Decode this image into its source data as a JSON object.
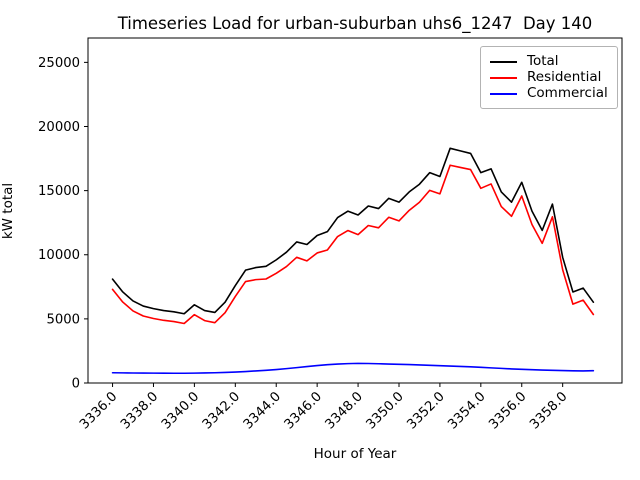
{
  "figure": {
    "background": "#ffffff"
  },
  "legend": {
    "position": "upper right",
    "entries": [
      {
        "label": "Total",
        "color": "#000000"
      },
      {
        "label": "Residential",
        "color": "#ff0000"
      },
      {
        "label": "Commercial",
        "color": "#0000ff"
      }
    ]
  },
  "chart_data": {
    "type": "line",
    "title": "Timeseries Load for urban-suburban uhs6_1247  Day 140",
    "xlabel": "Hour of Year",
    "ylabel": "kW total",
    "xlim": [
      3334.8,
      3360.9
    ],
    "ylim": [
      0,
      26900
    ],
    "grid": false,
    "legend_position": "upper right",
    "xticks": [
      3336,
      3338,
      3340,
      3342,
      3344,
      3346,
      3348,
      3350,
      3352,
      3354,
      3356,
      3358
    ],
    "xtick_labels": [
      "3336.0",
      "3338.0",
      "3340.0",
      "3342.0",
      "3344.0",
      "3346.0",
      "3348.0",
      "3350.0",
      "3352.0",
      "3354.0",
      "3356.0",
      "3358.0"
    ],
    "yticks": [
      0,
      5000,
      10000,
      15000,
      20000,
      25000
    ],
    "ytick_labels": [
      "0",
      "5000",
      "10000",
      "15000",
      "20000",
      "25000"
    ],
    "x": [
      3336.0,
      3336.5,
      3337.0,
      3337.5,
      3338.0,
      3338.5,
      3339.0,
      3339.5,
      3340.0,
      3340.5,
      3341.0,
      3341.5,
      3342.0,
      3342.5,
      3343.0,
      3343.5,
      3344.0,
      3344.5,
      3345.0,
      3345.5,
      3346.0,
      3346.5,
      3347.0,
      3347.5,
      3348.0,
      3348.5,
      3349.0,
      3349.5,
      3350.0,
      3350.5,
      3351.0,
      3351.5,
      3352.0,
      3352.5,
      3353.0,
      3353.5,
      3354.0,
      3354.5,
      3355.0,
      3355.5,
      3356.0,
      3356.5,
      3357.0,
      3357.5,
      3358.0,
      3358.5,
      3359.0,
      3359.5
    ],
    "series": [
      {
        "name": "Total",
        "color": "#000000",
        "values": [
          8100,
          7100,
          6400,
          6000,
          5800,
          5650,
          5550,
          5400,
          6100,
          5650,
          5500,
          6300,
          7600,
          8800,
          9000,
          9100,
          9600,
          10200,
          11000,
          10800,
          11500,
          11800,
          12900,
          13400,
          13100,
          13800,
          13600,
          14400,
          14100,
          14900,
          15500,
          16400,
          16100,
          18300,
          18100,
          17900,
          16400,
          16700,
          14900,
          14100,
          15650,
          13400,
          11900,
          13950,
          9800,
          7100,
          7400,
          6300
        ]
      },
      {
        "name": "Residential",
        "color": "#ff0000",
        "values": [
          7300,
          6310,
          5620,
          5225,
          5030,
          4885,
          4790,
          4640,
          5330,
          4865,
          4700,
          5480,
          6750,
          7910,
          8060,
          8110,
          8550,
          9080,
          9800,
          9520,
          10140,
          10370,
          11420,
          11890,
          11570,
          12280,
          12100,
          12920,
          12640,
          13460,
          14090,
          15020,
          14750,
          16980,
          16810,
          16640,
          15180,
          15520,
          13760,
          13000,
          14580,
          12360,
          10890,
          12960,
          8830,
          6150,
          6460,
          5340
        ]
      },
      {
        "name": "Commercial",
        "color": "#0000ff",
        "values": [
          800,
          790,
          780,
          775,
          770,
          765,
          760,
          760,
          770,
          785,
          800,
          820,
          850,
          890,
          940,
          990,
          1050,
          1120,
          1200,
          1280,
          1360,
          1430,
          1480,
          1510,
          1530,
          1520,
          1500,
          1480,
          1460,
          1440,
          1410,
          1380,
          1350,
          1320,
          1290,
          1260,
          1220,
          1180,
          1140,
          1100,
          1070,
          1040,
          1010,
          990,
          970,
          950,
          940,
          960
        ]
      }
    ]
  }
}
